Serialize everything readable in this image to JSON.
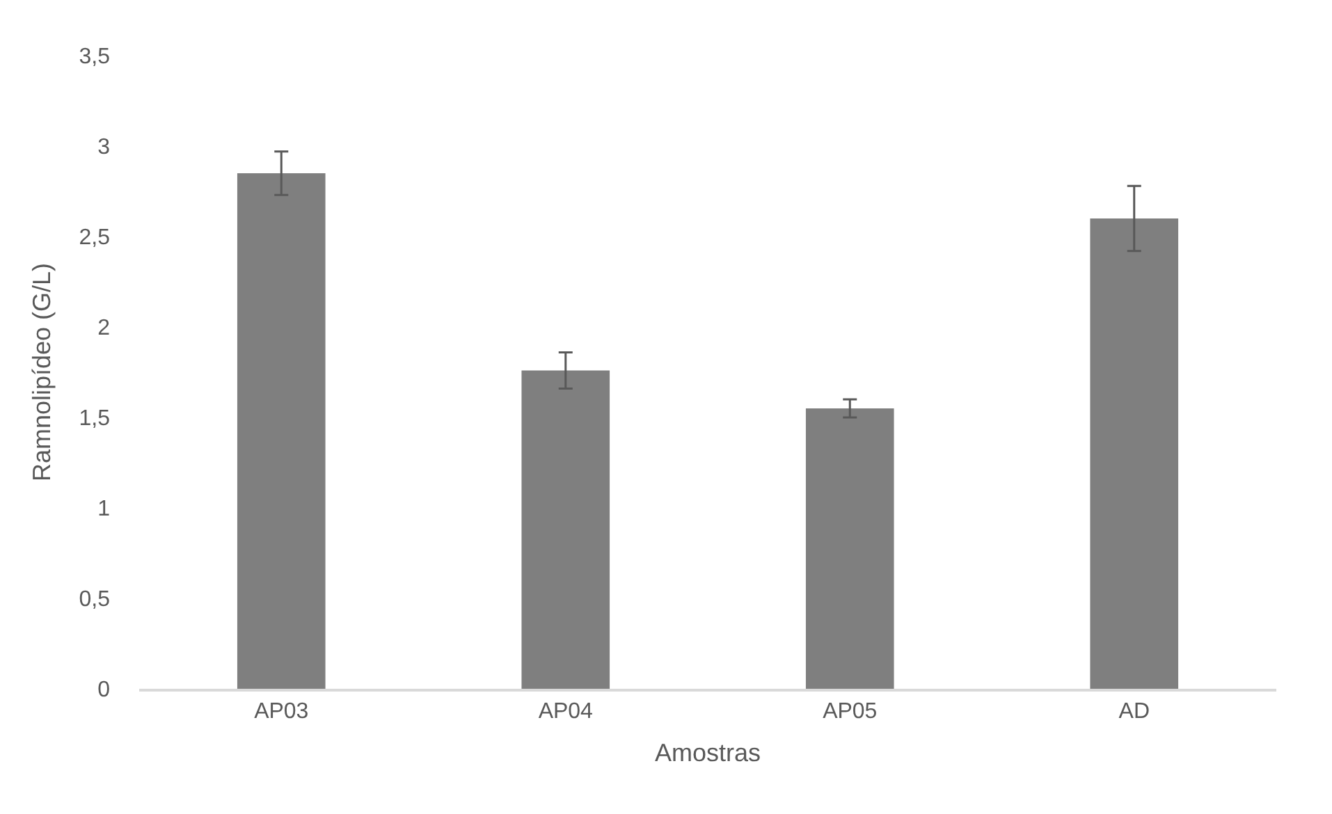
{
  "chart_data": {
    "type": "bar",
    "xlabel": "Amostras",
    "ylabel": "Ramnolipídeo (G/L)",
    "categories": [
      "AP03",
      "AP04",
      "AP05",
      "AD"
    ],
    "series": [
      {
        "color": "#7f7f7f",
        "values": [
          2.85,
          1.76,
          1.55,
          2.6
        ],
        "errors": [
          0.12,
          0.1,
          0.05,
          0.18
        ]
      }
    ],
    "ylim": [
      0,
      3.5
    ],
    "yticks": [
      0,
      {
        "value": 0.5,
        "label": "0,5"
      },
      1,
      {
        "value": 1.5,
        "label": "1,5"
      },
      2,
      {
        "value": 2.5,
        "label": "2,5"
      },
      3,
      {
        "value": 3.5,
        "label": "3,5"
      }
    ],
    "data_labels": false
  }
}
